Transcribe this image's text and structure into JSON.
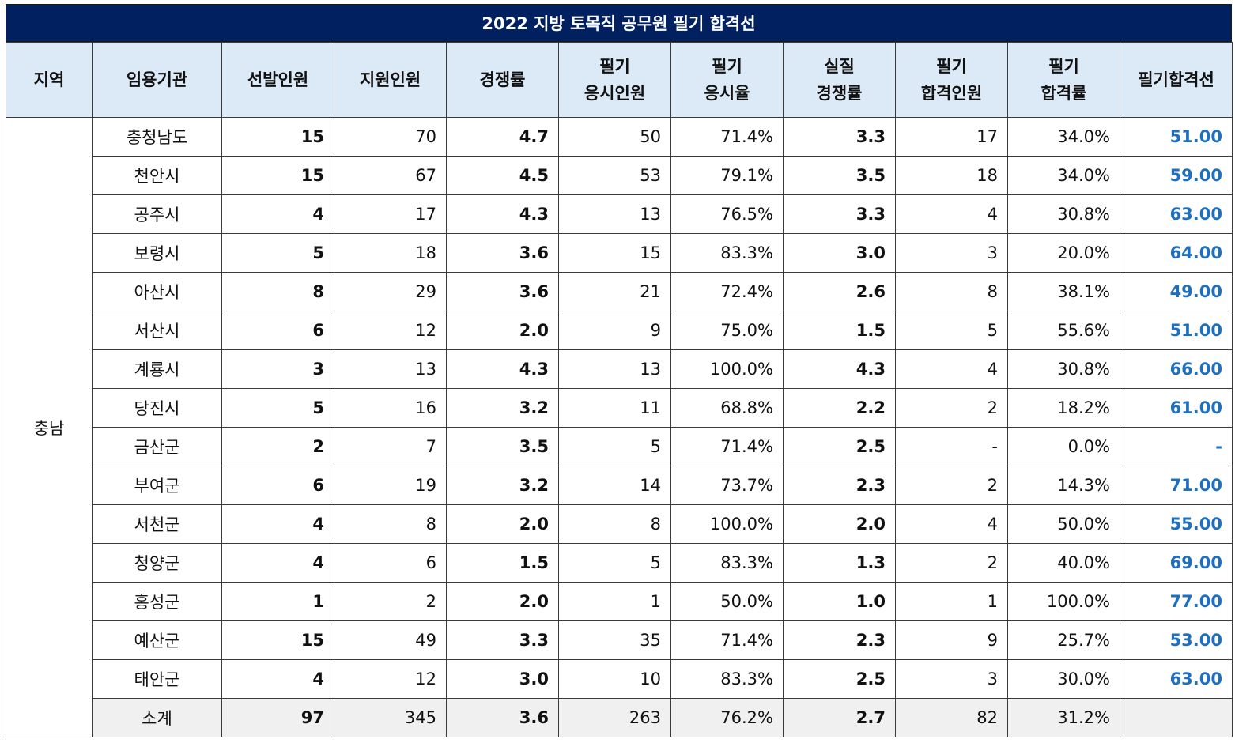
{
  "title": "2022 지방 토목직 공무원 필기 합격선",
  "headers": [
    [
      "지역"
    ],
    [
      "임용기관"
    ],
    [
      "선발인원"
    ],
    [
      "지원인원"
    ],
    [
      "경쟁률"
    ],
    [
      "필기",
      "응시인원"
    ],
    [
      "필기",
      "응시율"
    ],
    [
      "실질",
      "경쟁률"
    ],
    [
      "필기",
      "합격인원"
    ],
    [
      "필기",
      "합격률"
    ],
    [
      "필기합격선"
    ]
  ],
  "region": "충남",
  "rows": [
    {
      "agency": "충청남도",
      "selected": "15",
      "applied": "70",
      "ratio": "4.7",
      "exam_takers": "50",
      "exam_rate": "71.4%",
      "real_ratio": "3.3",
      "passed": "17",
      "pass_rate": "34.0%",
      "cutline": "51.00"
    },
    {
      "agency": "천안시",
      "selected": "15",
      "applied": "67",
      "ratio": "4.5",
      "exam_takers": "53",
      "exam_rate": "79.1%",
      "real_ratio": "3.5",
      "passed": "18",
      "pass_rate": "34.0%",
      "cutline": "59.00"
    },
    {
      "agency": "공주시",
      "selected": "4",
      "applied": "17",
      "ratio": "4.3",
      "exam_takers": "13",
      "exam_rate": "76.5%",
      "real_ratio": "3.3",
      "passed": "4",
      "pass_rate": "30.8%",
      "cutline": "63.00"
    },
    {
      "agency": "보령시",
      "selected": "5",
      "applied": "18",
      "ratio": "3.6",
      "exam_takers": "15",
      "exam_rate": "83.3%",
      "real_ratio": "3.0",
      "passed": "3",
      "pass_rate": "20.0%",
      "cutline": "64.00"
    },
    {
      "agency": "아산시",
      "selected": "8",
      "applied": "29",
      "ratio": "3.6",
      "exam_takers": "21",
      "exam_rate": "72.4%",
      "real_ratio": "2.6",
      "passed": "8",
      "pass_rate": "38.1%",
      "cutline": "49.00"
    },
    {
      "agency": "서산시",
      "selected": "6",
      "applied": "12",
      "ratio": "2.0",
      "exam_takers": "9",
      "exam_rate": "75.0%",
      "real_ratio": "1.5",
      "passed": "5",
      "pass_rate": "55.6%",
      "cutline": "51.00"
    },
    {
      "agency": "계룡시",
      "selected": "3",
      "applied": "13",
      "ratio": "4.3",
      "exam_takers": "13",
      "exam_rate": "100.0%",
      "real_ratio": "4.3",
      "passed": "4",
      "pass_rate": "30.8%",
      "cutline": "66.00"
    },
    {
      "agency": "당진시",
      "selected": "5",
      "applied": "16",
      "ratio": "3.2",
      "exam_takers": "11",
      "exam_rate": "68.8%",
      "real_ratio": "2.2",
      "passed": "2",
      "pass_rate": "18.2%",
      "cutline": "61.00"
    },
    {
      "agency": "금산군",
      "selected": "2",
      "applied": "7",
      "ratio": "3.5",
      "exam_takers": "5",
      "exam_rate": "71.4%",
      "real_ratio": "2.5",
      "passed": "-",
      "pass_rate": "0.0%",
      "cutline": "-"
    },
    {
      "agency": "부여군",
      "selected": "6",
      "applied": "19",
      "ratio": "3.2",
      "exam_takers": "14",
      "exam_rate": "73.7%",
      "real_ratio": "2.3",
      "passed": "2",
      "pass_rate": "14.3%",
      "cutline": "71.00"
    },
    {
      "agency": "서천군",
      "selected": "4",
      "applied": "8",
      "ratio": "2.0",
      "exam_takers": "8",
      "exam_rate": "100.0%",
      "real_ratio": "2.0",
      "passed": "4",
      "pass_rate": "50.0%",
      "cutline": "55.00"
    },
    {
      "agency": "청양군",
      "selected": "4",
      "applied": "6",
      "ratio": "1.5",
      "exam_takers": "5",
      "exam_rate": "83.3%",
      "real_ratio": "1.3",
      "passed": "2",
      "pass_rate": "40.0%",
      "cutline": "69.00"
    },
    {
      "agency": "홍성군",
      "selected": "1",
      "applied": "2",
      "ratio": "2.0",
      "exam_takers": "1",
      "exam_rate": "50.0%",
      "real_ratio": "1.0",
      "passed": "1",
      "pass_rate": "100.0%",
      "cutline": "77.00"
    },
    {
      "agency": "예산군",
      "selected": "15",
      "applied": "49",
      "ratio": "3.3",
      "exam_takers": "35",
      "exam_rate": "71.4%",
      "real_ratio": "2.3",
      "passed": "9",
      "pass_rate": "25.7%",
      "cutline": "53.00"
    },
    {
      "agency": "태안군",
      "selected": "4",
      "applied": "12",
      "ratio": "3.0",
      "exam_takers": "10",
      "exam_rate": "83.3%",
      "real_ratio": "2.5",
      "passed": "3",
      "pass_rate": "30.0%",
      "cutline": "63.00"
    }
  ],
  "subtotal": {
    "agency": "소계",
    "selected": "97",
    "applied": "345",
    "ratio": "3.6",
    "exam_takers": "263",
    "exam_rate": "76.2%",
    "real_ratio": "2.7",
    "passed": "82",
    "pass_rate": "31.2%",
    "cutline": ""
  },
  "colors": {
    "title_bg": "#002060",
    "header_bg": "#dce9f6",
    "cutline_text": "#1f6fbf",
    "subtotal_bg": "#f0f0f0"
  }
}
